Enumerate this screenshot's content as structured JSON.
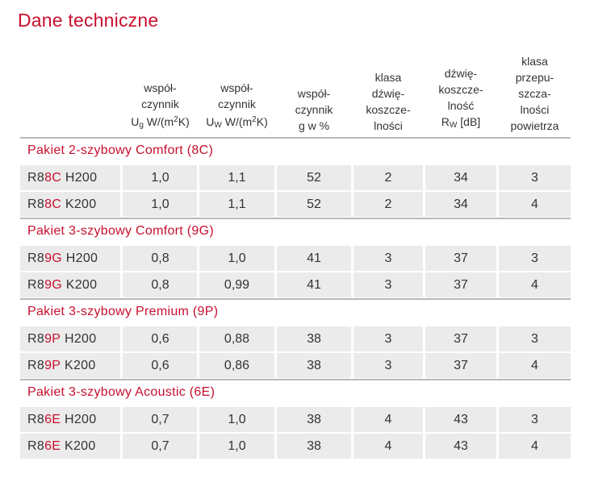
{
  "title": "Dane techniczne",
  "headers": {
    "col1": [
      "współ-",
      "czynnik"
    ],
    "col1_sym": "U",
    "col1_sub": "g",
    "col1_unit_pre": " W/(m",
    "col1_unit_sup": "2",
    "col1_unit_post": "K)",
    "col2": [
      "współ-",
      "czynnik"
    ],
    "col2_sym": "U",
    "col2_sub": "W",
    "col2_unit_pre": " W/(m",
    "col2_unit_sup": "2",
    "col2_unit_post": "K)",
    "col3": [
      "współ-",
      "czynnik",
      "g w %"
    ],
    "col4": [
      "klasa",
      "dźwię-",
      "koszcze-",
      "lności"
    ],
    "col5": [
      "dźwię-",
      "koszcze-",
      "lność"
    ],
    "col5_sym": "R",
    "col5_sub": "W",
    "col5_unit": " [dB]",
    "col6": [
      "klasa",
      "przepu-",
      "szcza-",
      "lności",
      "powietrza"
    ]
  },
  "sections": [
    {
      "label": "Pakiet 2-szybowy Comfort (8C)",
      "rows": [
        {
          "pre": "R8",
          "code": "8C",
          "suffix": " H200",
          "ug": "1,0",
          "uw": "1,1",
          "g": "52",
          "acoustic_class": "2",
          "rw": "34",
          "air_class": "3"
        },
        {
          "pre": "R8",
          "code": "8C",
          "suffix": " K200",
          "ug": "1,0",
          "uw": "1,1",
          "g": "52",
          "acoustic_class": "2",
          "rw": "34",
          "air_class": "4"
        }
      ]
    },
    {
      "label": "Pakiet 3-szybowy Comfort (9G)",
      "rows": [
        {
          "pre": "R8",
          "code": "9G",
          "suffix": " H200",
          "ug": "0,8",
          "uw": "1,0",
          "g": "41",
          "acoustic_class": "3",
          "rw": "37",
          "air_class": "3"
        },
        {
          "pre": "R8",
          "code": "9G",
          "suffix": " K200",
          "ug": "0,8",
          "uw": "0,99",
          "g": "41",
          "acoustic_class": "3",
          "rw": "37",
          "air_class": "4"
        }
      ]
    },
    {
      "label": "Pakiet 3-szybowy Premium (9P)",
      "rows": [
        {
          "pre": "R8",
          "code": "9P",
          "suffix": " H200",
          "ug": "0,6",
          "uw": "0,88",
          "g": "38",
          "acoustic_class": "3",
          "rw": "37",
          "air_class": "3"
        },
        {
          "pre": "R8",
          "code": "9P",
          "suffix": " K200",
          "ug": "0,6",
          "uw": "0,86",
          "g": "38",
          "acoustic_class": "3",
          "rw": "37",
          "air_class": "4"
        }
      ]
    },
    {
      "label": "Pakiet 3-szybowy Acoustic (6E)",
      "rows": [
        {
          "pre": "R8",
          "code": "6E",
          "suffix": " H200",
          "ug": "0,7",
          "uw": "1,0",
          "g": "38",
          "acoustic_class": "4",
          "rw": "43",
          "air_class": "3"
        },
        {
          "pre": "R8",
          "code": "6E",
          "suffix": " K200",
          "ug": "0,7",
          "uw": "1,0",
          "g": "38",
          "acoustic_class": "4",
          "rw": "43",
          "air_class": "4"
        }
      ]
    }
  ],
  "colors": {
    "accent": "#c8102e",
    "row_bg": "#ebebeb",
    "text": "#333333",
    "divider": "#b9b9b9"
  }
}
